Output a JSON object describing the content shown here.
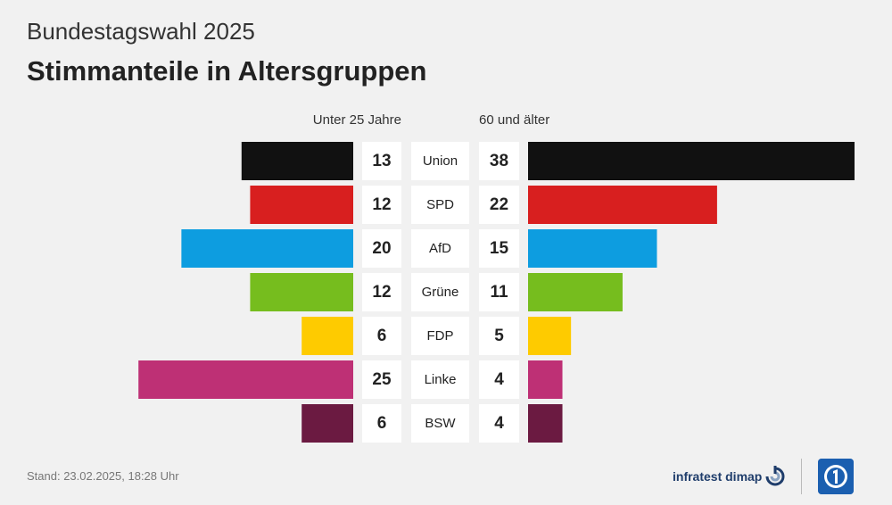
{
  "header": {
    "kicker": "Bundestagswahl 2025",
    "title": "Stimmanteile in Altersgruppen"
  },
  "chart_data": {
    "type": "bar",
    "orientation": "horizontal-butterfly",
    "title": "Stimmanteile in Altersgruppen",
    "unit": "%",
    "categories": [
      "Union",
      "SPD",
      "AfD",
      "Grüne",
      "FDP",
      "Linke",
      "BSW"
    ],
    "colors": [
      "#111111",
      "#d81f1f",
      "#0d9de0",
      "#76bd1e",
      "#fecb00",
      "#be3075",
      "#6b1a41"
    ],
    "series": [
      {
        "name": "Unter 25 Jahre",
        "side": "left",
        "values": [
          13,
          12,
          20,
          12,
          6,
          25,
          6
        ]
      },
      {
        "name": "60 und älter",
        "side": "right",
        "values": [
          38,
          22,
          15,
          11,
          5,
          4,
          4
        ]
      }
    ],
    "xlim": [
      0,
      38
    ]
  },
  "footer": {
    "stand": "Stand:  23.02.2025, 18:28 Uhr",
    "source": "infratest dimap"
  },
  "icons": {
    "infratest_logo": "infratest-dimap-logo-icon",
    "broadcaster_logo": "ard-logo-icon"
  }
}
